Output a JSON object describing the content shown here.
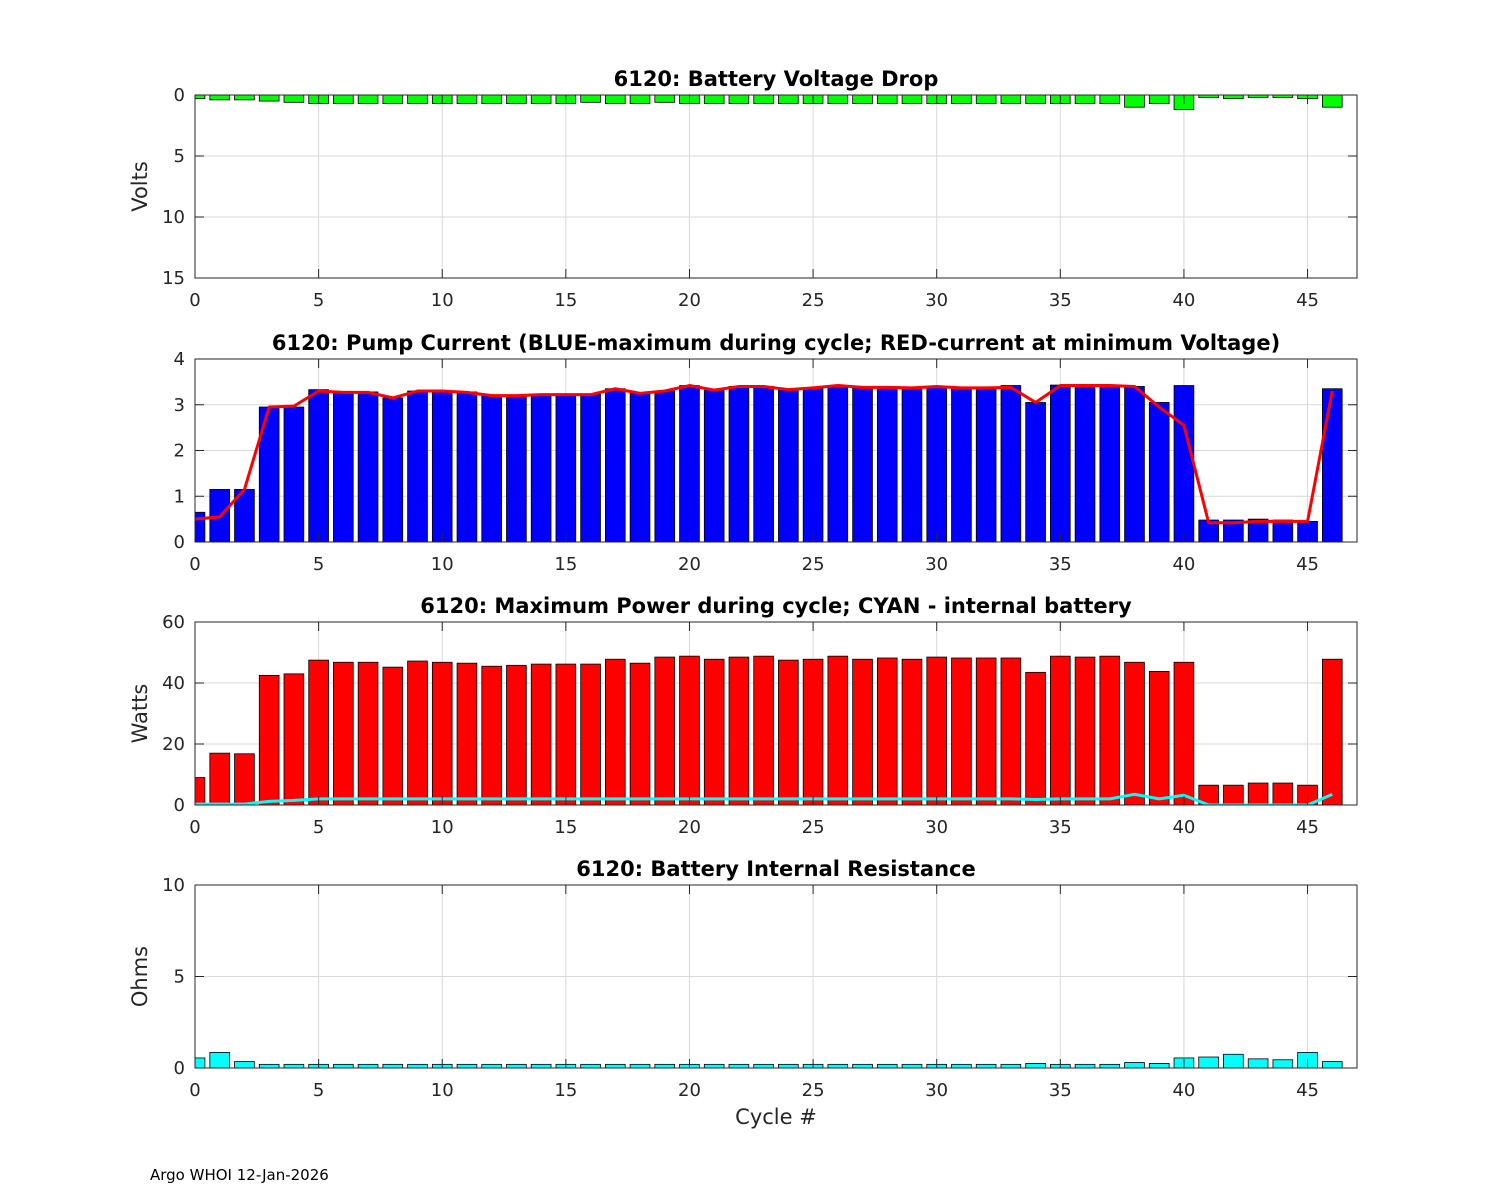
{
  "footer": "Argo WHOI 12-Jan-2026",
  "colors": {
    "green": "#00ff00",
    "blue": "#0000ff",
    "red": "#ff0000",
    "cyan": "#00ffff",
    "grid": "#d9d9d9",
    "axis": "#262626"
  },
  "chart_data": [
    {
      "type": "bar",
      "title": "6120: Battery Voltage Drop",
      "ylabel": "Volts",
      "xlabel": "",
      "xlim": [
        0,
        47
      ],
      "ylim": [
        0,
        15
      ],
      "y_reversed": true,
      "xticks": [
        0,
        5,
        10,
        15,
        20,
        25,
        30,
        35,
        40,
        45
      ],
      "yticks": [
        0,
        5,
        10,
        15
      ],
      "grid": true,
      "series": [
        {
          "name": "Voltage drop",
          "kind": "bar",
          "color": "green",
          "x": [
            0,
            1,
            2,
            3,
            4,
            5,
            6,
            7,
            8,
            9,
            10,
            11,
            12,
            13,
            14,
            15,
            16,
            17,
            18,
            19,
            20,
            21,
            22,
            23,
            24,
            25,
            26,
            27,
            28,
            29,
            30,
            31,
            32,
            33,
            34,
            35,
            36,
            37,
            38,
            39,
            40,
            41,
            42,
            43,
            44,
            45,
            46
          ],
          "values": [
            0.3,
            0.4,
            0.4,
            0.5,
            0.6,
            0.7,
            0.7,
            0.7,
            0.7,
            0.7,
            0.7,
            0.7,
            0.7,
            0.7,
            0.7,
            0.7,
            0.6,
            0.7,
            0.7,
            0.6,
            0.7,
            0.7,
            0.7,
            0.7,
            0.7,
            0.7,
            0.7,
            0.7,
            0.7,
            0.7,
            0.7,
            0.7,
            0.7,
            0.7,
            0.7,
            0.7,
            0.7,
            0.7,
            1.0,
            0.7,
            1.2,
            0.2,
            0.3,
            0.2,
            0.2,
            0.3,
            1.0
          ]
        }
      ]
    },
    {
      "type": "bar",
      "title": "6120: Pump Current (BLUE-maximum during cycle; RED-current at minimum Voltage)",
      "ylabel": "",
      "xlabel": "",
      "xlim": [
        0,
        47
      ],
      "ylim": [
        0,
        4
      ],
      "xticks": [
        0,
        5,
        10,
        15,
        20,
        25,
        30,
        35,
        40,
        45
      ],
      "yticks": [
        0,
        1,
        2,
        3,
        4
      ],
      "grid": true,
      "series": [
        {
          "name": "Maximum current during cycle",
          "kind": "bar",
          "color": "blue",
          "x": [
            0,
            1,
            2,
            3,
            4,
            5,
            6,
            7,
            8,
            9,
            10,
            11,
            12,
            13,
            14,
            15,
            16,
            17,
            18,
            19,
            20,
            21,
            22,
            23,
            24,
            25,
            26,
            27,
            28,
            29,
            30,
            31,
            32,
            33,
            34,
            35,
            36,
            37,
            38,
            39,
            40,
            41,
            42,
            43,
            44,
            45,
            46
          ],
          "values": [
            0.65,
            1.15,
            1.15,
            2.95,
            2.95,
            3.33,
            3.28,
            3.28,
            3.15,
            3.3,
            3.3,
            3.28,
            3.2,
            3.2,
            3.23,
            3.23,
            3.23,
            3.35,
            3.25,
            3.3,
            3.42,
            3.32,
            3.4,
            3.4,
            3.33,
            3.37,
            3.42,
            3.38,
            3.38,
            3.37,
            3.4,
            3.37,
            3.37,
            3.42,
            3.05,
            3.43,
            3.43,
            3.43,
            3.4,
            3.05,
            3.42,
            0.48,
            0.48,
            0.5,
            0.48,
            0.45,
            3.35
          ]
        },
        {
          "name": "Current at minimum voltage",
          "kind": "line",
          "color": "red",
          "x": [
            0,
            1,
            2,
            3,
            4,
            5,
            6,
            7,
            8,
            9,
            10,
            11,
            12,
            13,
            14,
            15,
            16,
            17,
            18,
            19,
            20,
            21,
            22,
            23,
            24,
            25,
            26,
            27,
            28,
            29,
            30,
            31,
            32,
            33,
            34,
            35,
            36,
            37,
            38,
            39,
            40,
            41,
            42,
            43,
            44,
            45,
            46
          ],
          "values": [
            0.5,
            0.55,
            1.15,
            2.95,
            2.97,
            3.3,
            3.27,
            3.27,
            3.15,
            3.3,
            3.3,
            3.27,
            3.2,
            3.2,
            3.22,
            3.22,
            3.22,
            3.35,
            3.25,
            3.3,
            3.42,
            3.32,
            3.4,
            3.4,
            3.33,
            3.37,
            3.42,
            3.38,
            3.38,
            3.37,
            3.4,
            3.37,
            3.37,
            3.38,
            3.05,
            3.42,
            3.42,
            3.42,
            3.4,
            2.95,
            2.55,
            0.42,
            0.42,
            0.45,
            0.45,
            0.45,
            3.3
          ]
        }
      ]
    },
    {
      "type": "bar",
      "title": "6120: Maximum Power during cycle; CYAN - internal battery",
      "ylabel": "Watts",
      "xlabel": "",
      "xlim": [
        0,
        47
      ],
      "ylim": [
        0,
        60
      ],
      "xticks": [
        0,
        5,
        10,
        15,
        20,
        25,
        30,
        35,
        40,
        45
      ],
      "yticks": [
        0,
        20,
        40,
        60
      ],
      "grid": true,
      "series": [
        {
          "name": "Maximum power",
          "kind": "bar",
          "color": "red",
          "x": [
            0,
            1,
            2,
            3,
            4,
            5,
            6,
            7,
            8,
            9,
            10,
            11,
            12,
            13,
            14,
            15,
            16,
            17,
            18,
            19,
            20,
            21,
            22,
            23,
            24,
            25,
            26,
            27,
            28,
            29,
            30,
            31,
            32,
            33,
            34,
            35,
            36,
            37,
            38,
            39,
            40,
            41,
            42,
            43,
            44,
            45,
            46
          ],
          "values": [
            9,
            17,
            16.8,
            42.5,
            43,
            47.5,
            46.8,
            46.8,
            45.2,
            47.2,
            46.8,
            46.5,
            45.5,
            45.8,
            46.2,
            46.2,
            46.2,
            47.8,
            46.5,
            48.5,
            48.8,
            47.8,
            48.5,
            48.8,
            47.5,
            47.8,
            48.8,
            47.8,
            48.2,
            47.8,
            48.5,
            48.2,
            48.2,
            48.2,
            43.5,
            48.8,
            48.5,
            48.8,
            46.8,
            43.8,
            46.8,
            6.5,
            6.5,
            7.2,
            7.2,
            6.5,
            47.8
          ]
        },
        {
          "name": "Internal battery",
          "kind": "line",
          "color": "cyan",
          "x": [
            0,
            1,
            2,
            3,
            4,
            5,
            6,
            7,
            8,
            9,
            10,
            11,
            12,
            13,
            14,
            15,
            16,
            17,
            18,
            19,
            20,
            21,
            22,
            23,
            24,
            25,
            26,
            27,
            28,
            29,
            30,
            31,
            32,
            33,
            34,
            35,
            36,
            37,
            38,
            39,
            40,
            41,
            42,
            43,
            44,
            45,
            46
          ],
          "values": [
            0.3,
            0.3,
            0.3,
            1.2,
            1.5,
            2,
            2,
            2,
            2,
            2,
            2,
            2,
            2,
            2,
            2,
            2,
            2,
            2,
            2,
            2,
            2,
            2,
            2,
            2,
            2,
            2,
            2,
            2,
            2,
            2,
            2,
            2,
            2,
            2,
            1.8,
            2,
            2,
            2,
            3.5,
            2,
            3.2,
            0,
            0,
            0,
            0,
            0,
            3.5
          ]
        }
      ]
    },
    {
      "type": "bar",
      "title": "6120: Battery Internal Resistance",
      "ylabel": "Ohms",
      "xlabel": "Cycle #",
      "xlim": [
        0,
        47
      ],
      "ylim": [
        0,
        10
      ],
      "xticks": [
        0,
        5,
        10,
        15,
        20,
        25,
        30,
        35,
        40,
        45
      ],
      "yticks": [
        0,
        5,
        10
      ],
      "grid": true,
      "series": [
        {
          "name": "Internal resistance",
          "kind": "bar",
          "color": "cyan",
          "x": [
            0,
            1,
            2,
            3,
            4,
            5,
            6,
            7,
            8,
            9,
            10,
            11,
            12,
            13,
            14,
            15,
            16,
            17,
            18,
            19,
            20,
            21,
            22,
            23,
            24,
            25,
            26,
            27,
            28,
            29,
            30,
            31,
            32,
            33,
            34,
            35,
            36,
            37,
            38,
            39,
            40,
            41,
            42,
            43,
            44,
            45,
            46
          ],
          "values": [
            0.55,
            0.85,
            0.35,
            0.2,
            0.2,
            0.2,
            0.2,
            0.2,
            0.2,
            0.2,
            0.2,
            0.2,
            0.2,
            0.2,
            0.2,
            0.2,
            0.2,
            0.2,
            0.2,
            0.2,
            0.2,
            0.2,
            0.2,
            0.2,
            0.2,
            0.2,
            0.2,
            0.2,
            0.2,
            0.2,
            0.2,
            0.2,
            0.2,
            0.2,
            0.25,
            0.2,
            0.2,
            0.2,
            0.3,
            0.25,
            0.55,
            0.6,
            0.75,
            0.5,
            0.45,
            0.85,
            0.35
          ]
        }
      ]
    }
  ]
}
